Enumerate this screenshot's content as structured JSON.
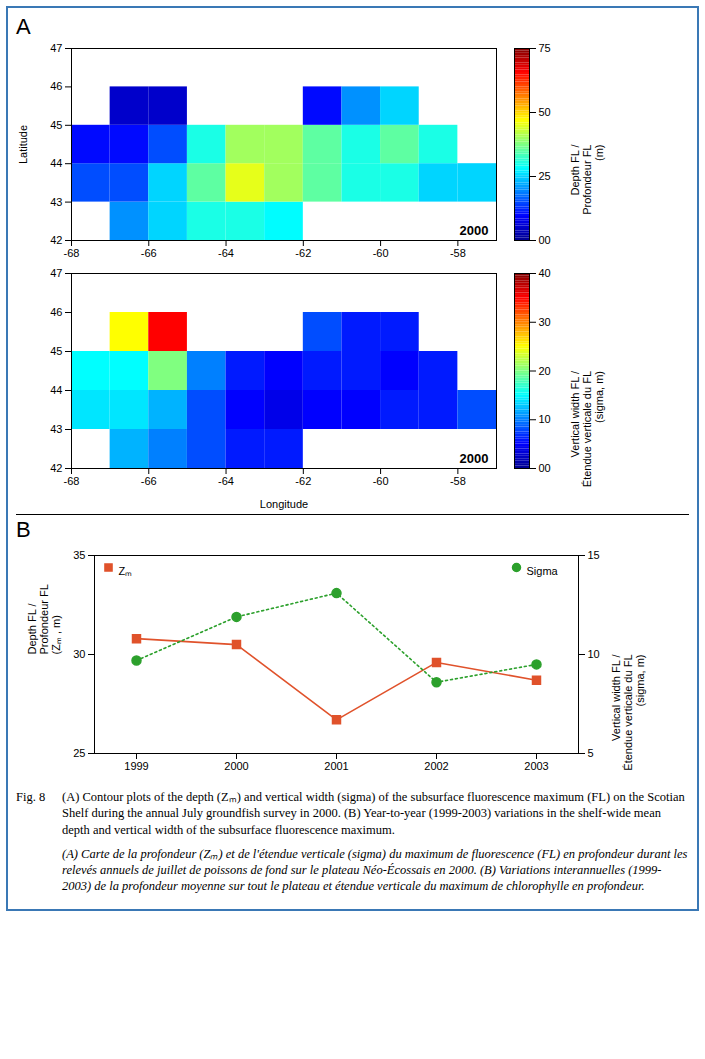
{
  "chart_data": [
    {
      "type": "heatmap",
      "panel": "A",
      "annotation": "2000",
      "ylabel": "Latitude",
      "xlim": [
        -68,
        -57
      ],
      "xticks": [
        -68,
        -66,
        -64,
        -62,
        -60,
        -58
      ],
      "ylim": [
        42,
        47
      ],
      "yticks": [
        42,
        43,
        44,
        45,
        46,
        47
      ],
      "lon_edges": [
        -68,
        -67,
        -66,
        -65,
        -64,
        -63,
        -62,
        -61,
        -60,
        -59,
        -58,
        -57
      ],
      "lat_edges": [
        42,
        43,
        44,
        45,
        46,
        47
      ],
      "values": [
        [
          null,
          20,
          25,
          30,
          30,
          28,
          null,
          null,
          null,
          null,
          null
        ],
        [
          15,
          15,
          25,
          35,
          45,
          40,
          35,
          30,
          30,
          25,
          25
        ],
        [
          10,
          10,
          15,
          30,
          40,
          40,
          35,
          30,
          35,
          30,
          null
        ],
        [
          null,
          5,
          5,
          null,
          null,
          null,
          10,
          20,
          25,
          null,
          null
        ],
        [
          null,
          null,
          null,
          null,
          null,
          null,
          null,
          null,
          null,
          null,
          null
        ]
      ],
      "colorbar": {
        "label": "Depth FL / Profondeur FL (m)",
        "lim": [
          0,
          75
        ],
        "ticks": [
          {
            "value": 0,
            "label": "00"
          },
          25,
          50,
          75
        ]
      }
    },
    {
      "type": "heatmap",
      "annotation": "2000",
      "xlabel": "Longitude",
      "xlim": [
        -68,
        -57
      ],
      "xticks": [
        -68,
        -66,
        -64,
        -62,
        -60,
        -58
      ],
      "ylim": [
        42,
        47
      ],
      "yticks": [
        42,
        43,
        44,
        45,
        46,
        47
      ],
      "lon_edges": [
        -68,
        -67,
        -66,
        -65,
        -64,
        -63,
        -62,
        -61,
        -60,
        -59,
        -58,
        -57
      ],
      "lat_edges": [
        42,
        43,
        44,
        45,
        46,
        47
      ],
      "values": [
        [
          null,
          12,
          10,
          8,
          6,
          6,
          null,
          null,
          null,
          null,
          null
        ],
        [
          14,
          14,
          12,
          8,
          5,
          4,
          5,
          5,
          6,
          6,
          8
        ],
        [
          15,
          15,
          20,
          10,
          6,
          5,
          6,
          6,
          5,
          6,
          null
        ],
        [
          null,
          25,
          35,
          null,
          null,
          null,
          8,
          6,
          6,
          null,
          null
        ],
        [
          null,
          null,
          null,
          null,
          null,
          null,
          null,
          null,
          null,
          null,
          null
        ]
      ],
      "colorbar": {
        "label": "Vertical width FL / Étendue verticale du FL (sigma, m)",
        "lim": [
          0,
          40
        ],
        "ticks": [
          {
            "value": 0,
            "label": "00"
          },
          10,
          20,
          30,
          40
        ]
      }
    },
    {
      "type": "line",
      "panel": "B",
      "legend": "top",
      "ylabel": "Depth FL / Profondeur FL (Zₘ , m)",
      "y2label": "Vertical width FL / Étendue verticale du FL (sigma, m)",
      "categories": [
        "1999",
        "2000",
        "2001",
        "2002",
        "2003"
      ],
      "ylim": [
        25,
        35
      ],
      "yticks": [
        25,
        30,
        35
      ],
      "y2lim": [
        5,
        15
      ],
      "y2ticks": [
        5,
        10,
        15
      ],
      "series": [
        {
          "name": "Zₘ",
          "color": "#e0522b",
          "marker": "square",
          "line_style": "solid",
          "values": [
            30.8,
            30.5,
            26.7,
            29.6,
            28.7
          ]
        },
        {
          "name": "Sigma",
          "color": "#2ca02c",
          "marker": "circle",
          "line_style": "dotted",
          "axis": "y2",
          "values": [
            9.7,
            11.9,
            13.1,
            8.6,
            9.5
          ]
        }
      ]
    }
  ],
  "caption": {
    "label": "Fig. 8",
    "english": "(A) Contour plots of the depth (Zₘ) and vertical width (sigma) of the subsurface fluorescence maximum (FL) on the Scotian Shelf during the annual July groundfish survey in 2000. (B) Year-to-year (1999-2003) variations in the shelf-wide mean depth and vertical width of the subsurface fluorescence maximum.",
    "french": "(A) Carte de la profondeur (Zₘ) et de l'étendue verticale (sigma) du maximum de fluorescence (FL) en profondeur durant les relevés annuels de juillet de poissons de fond sur le plateau Néo-Écossais en 2000. (B) Variations interannuelles (1999-2003) de la profondeur moyenne sur tout le plateau et étendue verticale du maximum de chlorophylle en profondeur."
  }
}
